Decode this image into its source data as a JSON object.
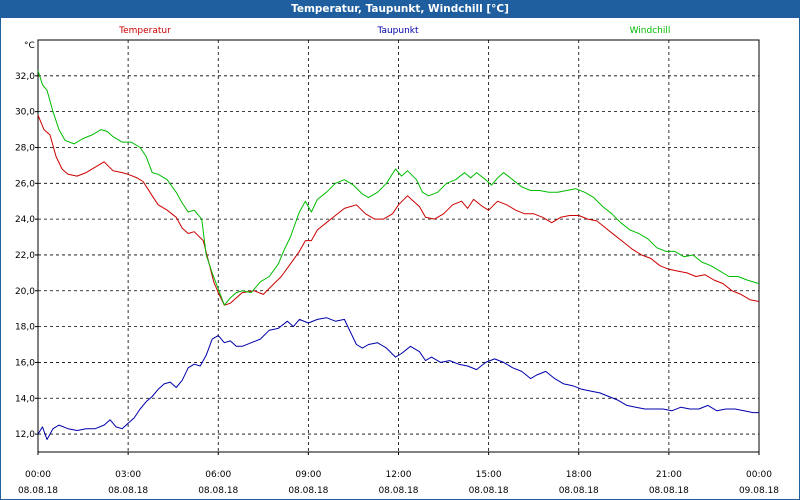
{
  "window": {
    "title": "Temperatur, Taupunkt, Windchill [°C]"
  },
  "colors": {
    "title_bar": "#1f5f9f",
    "temperatur": "#cc0000",
    "taupunkt": "#0000aa",
    "windchill": "#00bb00",
    "grid": "#000000"
  },
  "chart_data": {
    "type": "line",
    "title": "Temperatur, Taupunkt, Windchill [°C]",
    "ylabel": "°C",
    "xlabel": "",
    "ylim": [
      11,
      34
    ],
    "xlim": [
      0,
      24
    ],
    "grid": true,
    "legend_position": "top",
    "y_ticks": [
      "12,0",
      "14,0",
      "16,0",
      "18,0",
      "20,0",
      "22,0",
      "24,0",
      "26,0",
      "28,0",
      "30,0",
      "32,0"
    ],
    "x_ticks": [
      {
        "time": "00:00",
        "date": "08.08.18"
      },
      {
        "time": "03:00",
        "date": "08.08.18"
      },
      {
        "time": "06:00",
        "date": "08.08.18"
      },
      {
        "time": "09:00",
        "date": "08.08.18"
      },
      {
        "time": "12:00",
        "date": "08.08.18"
      },
      {
        "time": "15:00",
        "date": "08.08.18"
      },
      {
        "time": "18:00",
        "date": "08.08.18"
      },
      {
        "time": "21:00",
        "date": "08.08.18"
      },
      {
        "time": "00:00",
        "date": "09.08.18"
      }
    ],
    "series": [
      {
        "name": "Temperatur",
        "points": [
          [
            0,
            29.8
          ],
          [
            0.2,
            29.0
          ],
          [
            0.4,
            28.7
          ],
          [
            0.6,
            27.5
          ],
          [
            0.8,
            26.8
          ],
          [
            1.0,
            26.5
          ],
          [
            1.3,
            26.4
          ],
          [
            1.6,
            26.6
          ],
          [
            2.0,
            27.0
          ],
          [
            2.2,
            27.2
          ],
          [
            2.5,
            26.7
          ],
          [
            2.8,
            26.6
          ],
          [
            3.0,
            26.5
          ],
          [
            3.3,
            26.3
          ],
          [
            3.5,
            26.1
          ],
          [
            3.8,
            25.3
          ],
          [
            4.0,
            24.8
          ],
          [
            4.3,
            24.5
          ],
          [
            4.6,
            24.1
          ],
          [
            4.8,
            23.5
          ],
          [
            5.0,
            23.2
          ],
          [
            5.2,
            23.3
          ],
          [
            5.5,
            22.8
          ],
          [
            5.7,
            21.5
          ],
          [
            5.85,
            20.5
          ],
          [
            6.0,
            19.9
          ],
          [
            6.2,
            19.2
          ],
          [
            6.4,
            19.3
          ],
          [
            6.6,
            19.6
          ],
          [
            6.8,
            19.9
          ],
          [
            7.2,
            20.0
          ],
          [
            7.5,
            19.8
          ],
          [
            7.8,
            20.3
          ],
          [
            8.1,
            20.8
          ],
          [
            8.4,
            21.5
          ],
          [
            8.7,
            22.2
          ],
          [
            8.9,
            22.8
          ],
          [
            9.1,
            22.8
          ],
          [
            9.3,
            23.4
          ],
          [
            9.6,
            23.8
          ],
          [
            9.9,
            24.2
          ],
          [
            10.2,
            24.6
          ],
          [
            10.6,
            24.8
          ],
          [
            10.9,
            24.3
          ],
          [
            11.2,
            24.0
          ],
          [
            11.5,
            24.0
          ],
          [
            11.8,
            24.3
          ],
          [
            12.0,
            24.8
          ],
          [
            12.3,
            25.3
          ],
          [
            12.5,
            25.0
          ],
          [
            12.7,
            24.7
          ],
          [
            12.9,
            24.1
          ],
          [
            13.2,
            24.0
          ],
          [
            13.5,
            24.3
          ],
          [
            13.8,
            24.8
          ],
          [
            14.1,
            25.0
          ],
          [
            14.3,
            24.6
          ],
          [
            14.5,
            25.1
          ],
          [
            14.8,
            24.7
          ],
          [
            15.0,
            24.5
          ],
          [
            15.3,
            25.0
          ],
          [
            15.6,
            24.8
          ],
          [
            15.9,
            24.5
          ],
          [
            16.2,
            24.3
          ],
          [
            16.5,
            24.3
          ],
          [
            16.8,
            24.1
          ],
          [
            17.1,
            23.8
          ],
          [
            17.4,
            24.1
          ],
          [
            17.7,
            24.2
          ],
          [
            18.0,
            24.2
          ],
          [
            18.3,
            24.0
          ],
          [
            18.6,
            23.9
          ],
          [
            18.9,
            23.5
          ],
          [
            19.2,
            23.1
          ],
          [
            19.5,
            22.7
          ],
          [
            19.8,
            22.3
          ],
          [
            20.1,
            22.0
          ],
          [
            20.4,
            21.8
          ],
          [
            20.7,
            21.4
          ],
          [
            21.0,
            21.2
          ],
          [
            21.3,
            21.1
          ],
          [
            21.6,
            21.0
          ],
          [
            21.9,
            20.8
          ],
          [
            22.2,
            20.9
          ],
          [
            22.5,
            20.6
          ],
          [
            22.8,
            20.4
          ],
          [
            23.1,
            20.0
          ],
          [
            23.4,
            19.8
          ],
          [
            23.7,
            19.5
          ],
          [
            24.0,
            19.4
          ]
        ]
      },
      {
        "name": "Taupunkt",
        "points": [
          [
            0,
            12.0
          ],
          [
            0.15,
            12.4
          ],
          [
            0.3,
            11.7
          ],
          [
            0.5,
            12.3
          ],
          [
            0.7,
            12.5
          ],
          [
            1.0,
            12.3
          ],
          [
            1.3,
            12.2
          ],
          [
            1.6,
            12.3
          ],
          [
            1.9,
            12.3
          ],
          [
            2.2,
            12.5
          ],
          [
            2.4,
            12.8
          ],
          [
            2.6,
            12.4
          ],
          [
            2.8,
            12.3
          ],
          [
            3.0,
            12.6
          ],
          [
            3.2,
            12.9
          ],
          [
            3.4,
            13.4
          ],
          [
            3.6,
            13.8
          ],
          [
            3.8,
            14.1
          ],
          [
            4.0,
            14.5
          ],
          [
            4.2,
            14.8
          ],
          [
            4.4,
            14.9
          ],
          [
            4.6,
            14.6
          ],
          [
            4.8,
            15.0
          ],
          [
            5.0,
            15.7
          ],
          [
            5.2,
            15.9
          ],
          [
            5.4,
            15.8
          ],
          [
            5.6,
            16.4
          ],
          [
            5.8,
            17.3
          ],
          [
            6.0,
            17.5
          ],
          [
            6.2,
            17.1
          ],
          [
            6.4,
            17.2
          ],
          [
            6.6,
            16.9
          ],
          [
            6.8,
            16.9
          ],
          [
            7.1,
            17.1
          ],
          [
            7.4,
            17.3
          ],
          [
            7.7,
            17.8
          ],
          [
            8.0,
            17.9
          ],
          [
            8.3,
            18.3
          ],
          [
            8.5,
            18.0
          ],
          [
            8.7,
            18.4
          ],
          [
            9.0,
            18.2
          ],
          [
            9.3,
            18.4
          ],
          [
            9.6,
            18.5
          ],
          [
            9.9,
            18.3
          ],
          [
            10.2,
            18.4
          ],
          [
            10.4,
            17.7
          ],
          [
            10.6,
            17.0
          ],
          [
            10.8,
            16.8
          ],
          [
            11.0,
            17.0
          ],
          [
            11.3,
            17.1
          ],
          [
            11.6,
            16.8
          ],
          [
            11.9,
            16.3
          ],
          [
            12.1,
            16.5
          ],
          [
            12.4,
            16.9
          ],
          [
            12.7,
            16.6
          ],
          [
            12.9,
            16.1
          ],
          [
            13.1,
            16.3
          ],
          [
            13.4,
            16.0
          ],
          [
            13.7,
            16.1
          ],
          [
            14.0,
            15.9
          ],
          [
            14.3,
            15.8
          ],
          [
            14.6,
            15.6
          ],
          [
            14.9,
            16.0
          ],
          [
            15.2,
            16.2
          ],
          [
            15.5,
            16.0
          ],
          [
            15.8,
            15.7
          ],
          [
            16.1,
            15.5
          ],
          [
            16.4,
            15.1
          ],
          [
            16.6,
            15.3
          ],
          [
            16.9,
            15.5
          ],
          [
            17.2,
            15.1
          ],
          [
            17.5,
            14.8
          ],
          [
            17.8,
            14.7
          ],
          [
            18.1,
            14.5
          ],
          [
            18.4,
            14.4
          ],
          [
            18.7,
            14.3
          ],
          [
            19.0,
            14.1
          ],
          [
            19.3,
            13.9
          ],
          [
            19.6,
            13.6
          ],
          [
            19.9,
            13.5
          ],
          [
            20.2,
            13.4
          ],
          [
            20.5,
            13.4
          ],
          [
            20.8,
            13.4
          ],
          [
            21.1,
            13.3
          ],
          [
            21.4,
            13.5
          ],
          [
            21.7,
            13.4
          ],
          [
            22.0,
            13.4
          ],
          [
            22.3,
            13.6
          ],
          [
            22.6,
            13.3
          ],
          [
            22.9,
            13.4
          ],
          [
            23.2,
            13.4
          ],
          [
            23.5,
            13.3
          ],
          [
            23.8,
            13.2
          ],
          [
            24.0,
            13.2
          ]
        ]
      },
      {
        "name": "Windchill",
        "points": [
          [
            0,
            32.3
          ],
          [
            0.15,
            31.5
          ],
          [
            0.3,
            31.2
          ],
          [
            0.5,
            30.0
          ],
          [
            0.7,
            29.0
          ],
          [
            0.9,
            28.4
          ],
          [
            1.2,
            28.2
          ],
          [
            1.5,
            28.5
          ],
          [
            1.8,
            28.7
          ],
          [
            2.1,
            29.0
          ],
          [
            2.3,
            28.9
          ],
          [
            2.5,
            28.6
          ],
          [
            2.8,
            28.3
          ],
          [
            3.1,
            28.3
          ],
          [
            3.4,
            28.0
          ],
          [
            3.6,
            27.5
          ],
          [
            3.8,
            26.6
          ],
          [
            4.0,
            26.5
          ],
          [
            4.3,
            26.2
          ],
          [
            4.6,
            25.5
          ],
          [
            4.8,
            24.9
          ],
          [
            5.0,
            24.4
          ],
          [
            5.2,
            24.5
          ],
          [
            5.45,
            24.0
          ],
          [
            5.6,
            22.0
          ],
          [
            5.8,
            21.0
          ],
          [
            6.0,
            20.1
          ],
          [
            6.2,
            19.2
          ],
          [
            6.4,
            19.6
          ],
          [
            6.6,
            19.9
          ],
          [
            6.8,
            20.0
          ],
          [
            7.1,
            19.9
          ],
          [
            7.4,
            20.5
          ],
          [
            7.7,
            20.8
          ],
          [
            8.0,
            21.5
          ],
          [
            8.2,
            22.3
          ],
          [
            8.4,
            23.0
          ],
          [
            8.7,
            24.4
          ],
          [
            8.9,
            25.0
          ],
          [
            9.1,
            24.4
          ],
          [
            9.3,
            25.1
          ],
          [
            9.6,
            25.5
          ],
          [
            9.9,
            26.0
          ],
          [
            10.2,
            26.2
          ],
          [
            10.5,
            25.9
          ],
          [
            10.8,
            25.4
          ],
          [
            11.0,
            25.2
          ],
          [
            11.3,
            25.5
          ],
          [
            11.6,
            26.0
          ],
          [
            11.9,
            26.8
          ],
          [
            12.1,
            26.4
          ],
          [
            12.3,
            26.7
          ],
          [
            12.6,
            26.2
          ],
          [
            12.8,
            25.5
          ],
          [
            13.0,
            25.3
          ],
          [
            13.3,
            25.5
          ],
          [
            13.6,
            26.0
          ],
          [
            13.9,
            26.2
          ],
          [
            14.2,
            26.6
          ],
          [
            14.4,
            26.3
          ],
          [
            14.6,
            26.6
          ],
          [
            14.9,
            26.2
          ],
          [
            15.1,
            25.9
          ],
          [
            15.3,
            26.3
          ],
          [
            15.5,
            26.6
          ],
          [
            15.8,
            26.2
          ],
          [
            16.1,
            25.8
          ],
          [
            16.4,
            25.6
          ],
          [
            16.7,
            25.6
          ],
          [
            17.0,
            25.5
          ],
          [
            17.3,
            25.5
          ],
          [
            17.6,
            25.6
          ],
          [
            17.9,
            25.7
          ],
          [
            18.2,
            25.5
          ],
          [
            18.5,
            25.2
          ],
          [
            18.8,
            24.7
          ],
          [
            19.1,
            24.3
          ],
          [
            19.4,
            23.8
          ],
          [
            19.7,
            23.4
          ],
          [
            20.0,
            23.2
          ],
          [
            20.3,
            22.9
          ],
          [
            20.6,
            22.4
          ],
          [
            20.9,
            22.2
          ],
          [
            21.2,
            22.2
          ],
          [
            21.5,
            21.9
          ],
          [
            21.8,
            22.0
          ],
          [
            22.1,
            21.6
          ],
          [
            22.4,
            21.4
          ],
          [
            22.7,
            21.1
          ],
          [
            23.0,
            20.8
          ],
          [
            23.3,
            20.8
          ],
          [
            23.6,
            20.6
          ],
          [
            24.0,
            20.4
          ]
        ]
      }
    ]
  }
}
